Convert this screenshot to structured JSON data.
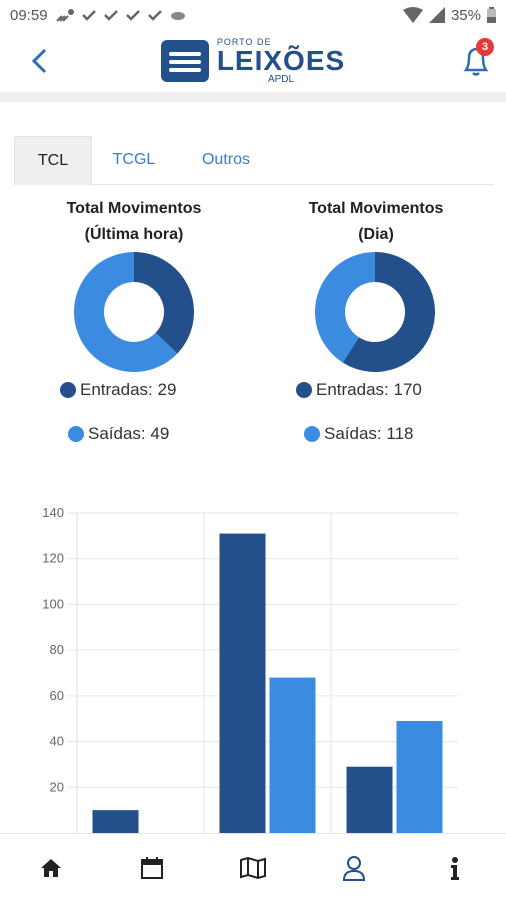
{
  "status": {
    "time": "09:59",
    "battery": "35%"
  },
  "header": {
    "logo_small": "PORTO DE",
    "logo_big": "LEIXÕES",
    "logo_sub": "APDL",
    "notifications": "3"
  },
  "tabs": [
    {
      "label": "TCL",
      "active": true
    },
    {
      "label": "TCGL",
      "active": false
    },
    {
      "label": "Outros",
      "active": false
    }
  ],
  "donuts": [
    {
      "title1": "Total Movimentos",
      "title2": "(Última hora)",
      "entradas_label": "Entradas: 29",
      "saidas_label": "Saídas: 49",
      "entradas": 29,
      "saidas": 49
    },
    {
      "title1": "Total Movimentos",
      "title2": "(Dia)",
      "entradas_label": "Entradas: 170",
      "saidas_label": "Saídas: 118",
      "entradas": 170,
      "saidas": 118
    }
  ],
  "colors": {
    "entradas": "#23508a",
    "saidas": "#3b8be0",
    "accent": "#2e6db4"
  },
  "chart_data": {
    "type": "bar",
    "categories": [
      "",
      "",
      ""
    ],
    "series": [
      {
        "name": "Entradas",
        "values": [
          10,
          131,
          29
        ]
      },
      {
        "name": "Saídas",
        "values": [
          0,
          68,
          49
        ]
      }
    ],
    "yticks": [
      "20",
      "40",
      "60",
      "80",
      "100",
      "120",
      "140"
    ],
    "ylim": [
      0,
      140
    ],
    "grid": true
  },
  "nav": [
    {
      "icon": "home-icon"
    },
    {
      "icon": "calendar-icon"
    },
    {
      "icon": "map-icon"
    },
    {
      "icon": "user-icon"
    },
    {
      "icon": "info-icon"
    }
  ]
}
